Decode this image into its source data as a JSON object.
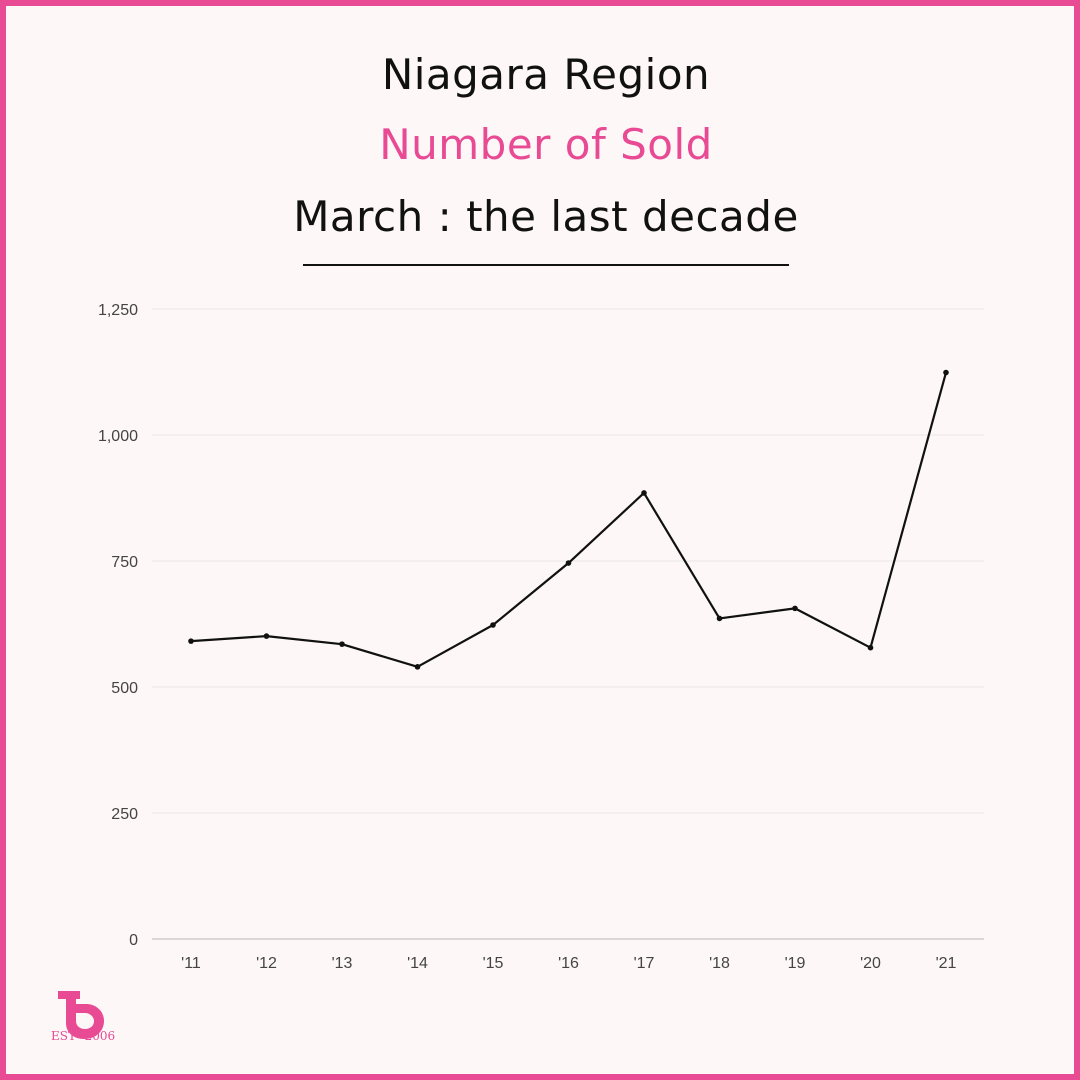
{
  "header": {
    "line1": "Niagara Region",
    "line2": "Number of Sold",
    "line3": "March : the last decade"
  },
  "colors": {
    "accent": "#e84a94",
    "line": "#111111",
    "background": "#fdf8f7",
    "grid": "#e9e6e6"
  },
  "logo": {
    "icon": "b-letter-logo-icon",
    "text": "ESTᵈ 2006"
  },
  "chart_data": {
    "type": "line",
    "title": "Number of Sold",
    "xlabel": "",
    "ylabel": "",
    "categories": [
      "'11",
      "'12",
      "'13",
      "'14",
      "'15",
      "'16",
      "'17",
      "'18",
      "'19",
      "'20",
      "'21"
    ],
    "series": [
      {
        "values": [
          591,
          601,
          585,
          540,
          623,
          746,
          885,
          636,
          656,
          578,
          1124
        ]
      }
    ],
    "ylim": [
      0,
      1250
    ],
    "yticks": [
      0,
      250,
      500,
      750,
      1000,
      1250
    ],
    "ytick_labels": [
      "0",
      "250",
      "500",
      "750",
      "1,000",
      "1,250"
    ],
    "grid": true,
    "legend": "none"
  }
}
